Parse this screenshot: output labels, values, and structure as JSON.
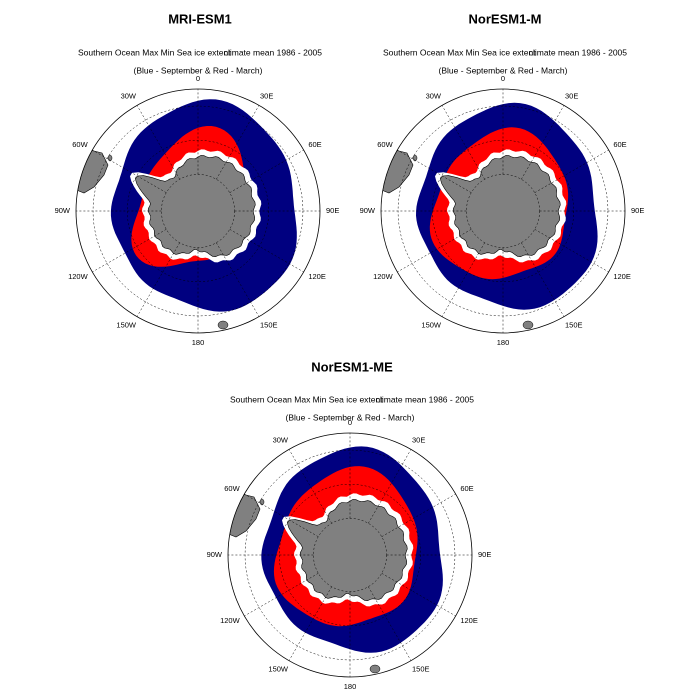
{
  "panels": [
    {
      "title": "MRI-ESM1",
      "subtitle_a": "Southern Ocean Max Min Sea ice extent",
      "subtitle_b": "climate mean 1986 - 2005",
      "caption": "(Blue - September & Red - March)"
    },
    {
      "title": "NorESM1-M",
      "subtitle_a": "Southern Ocean Max Min Sea ice extent",
      "subtitle_b": "climate mean 1986 - 2005",
      "caption": "(Blue - September & Red - March)"
    },
    {
      "title": "NorESM1-ME",
      "subtitle_a": "Southern Ocean Max Min Sea ice extent",
      "subtitle_b": "climate mean 1986 - 2005",
      "caption": "(Blue - September & Red - March)"
    }
  ],
  "longitude_labels": [
    "0",
    "30E",
    "60E",
    "90E",
    "120E",
    "150E",
    "180",
    "150W",
    "120W",
    "90W",
    "60W",
    "30W"
  ]
}
